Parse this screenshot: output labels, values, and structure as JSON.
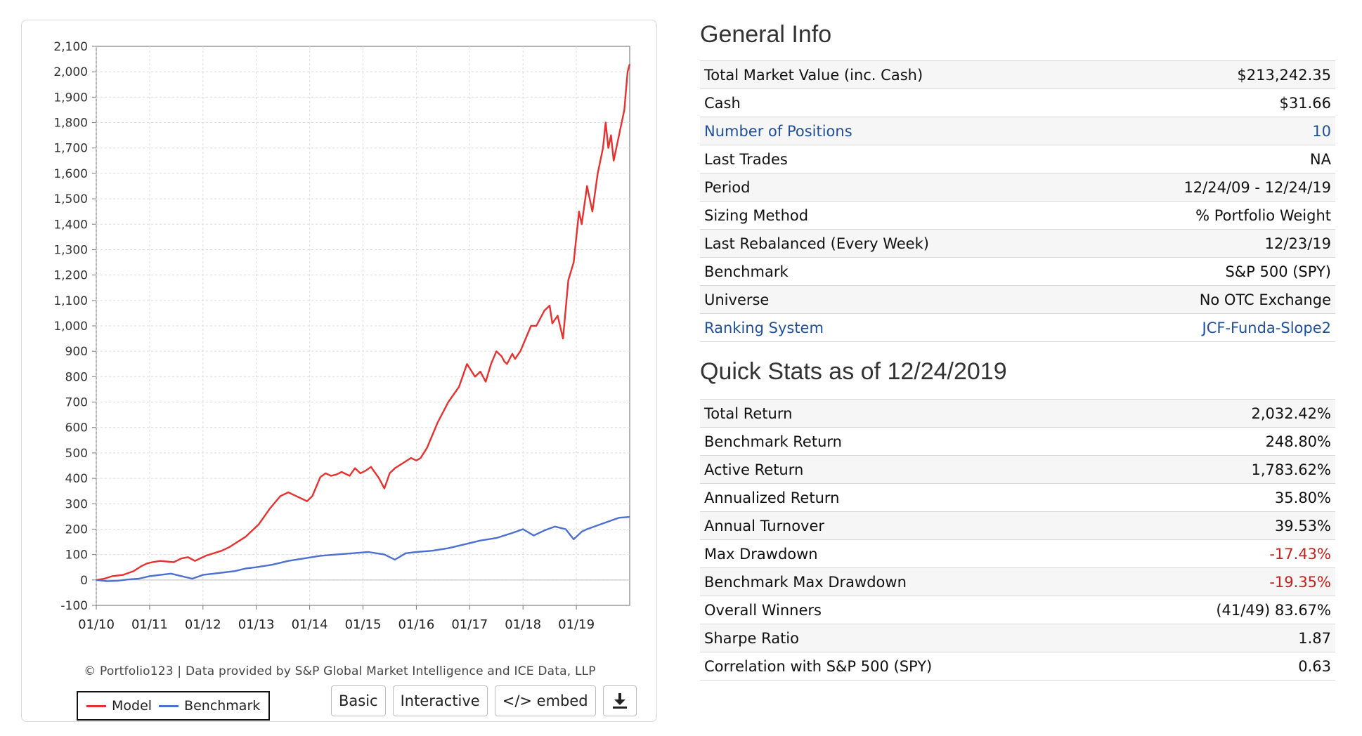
{
  "chart_data": {
    "type": "line",
    "title": "",
    "xlabel": "",
    "ylabel": "",
    "ylim": [
      -100,
      2100
    ],
    "y_ticks": [
      "2,100",
      "2,000",
      "1,900",
      "1,800",
      "1,700",
      "1,600",
      "1,500",
      "1,400",
      "1,300",
      "1,200",
      "1,100",
      "1,000",
      "900",
      "800",
      "700",
      "600",
      "500",
      "400",
      "300",
      "200",
      "100",
      "0",
      "-100"
    ],
    "x_ticks": [
      "01/10",
      "01/11",
      "01/12",
      "01/13",
      "01/14",
      "01/15",
      "01/16",
      "01/17",
      "01/18",
      "01/19"
    ],
    "grid": true,
    "legend_position": "bottom-left",
    "series": [
      {
        "name": "Model",
        "color": "#e8312e",
        "x": [
          0.0,
          0.15,
          0.3,
          0.5,
          0.7,
          0.85,
          0.95,
          1.05,
          1.2,
          1.45,
          1.6,
          1.72,
          1.85,
          1.95,
          2.05,
          2.2,
          2.35,
          2.5,
          2.65,
          2.8,
          2.95,
          3.05,
          3.25,
          3.45,
          3.6,
          3.75,
          3.85,
          3.95,
          4.05,
          4.2,
          4.3,
          4.4,
          4.5,
          4.6,
          4.75,
          4.85,
          4.95,
          5.05,
          5.15,
          5.3,
          5.4,
          5.5,
          5.6,
          5.75,
          5.9,
          6.0,
          6.08,
          6.2,
          6.4,
          6.6,
          6.8,
          6.95,
          7.1,
          7.2,
          7.3,
          7.4,
          7.5,
          7.6,
          7.65,
          7.7,
          7.8,
          7.85,
          7.95,
          8.05,
          8.15,
          8.25,
          8.4,
          8.5,
          8.55,
          8.65,
          8.75,
          8.85,
          8.95,
          9.0,
          9.05,
          9.1,
          9.2,
          9.3,
          9.4,
          9.5,
          9.55,
          9.6,
          9.65,
          9.7,
          9.75,
          9.8,
          9.85,
          9.9,
          9.92,
          9.96,
          10.0
        ],
        "values": [
          0,
          5,
          15,
          20,
          35,
          55,
          65,
          70,
          75,
          70,
          85,
          90,
          75,
          85,
          95,
          105,
          115,
          130,
          150,
          170,
          200,
          220,
          280,
          330,
          345,
          330,
          320,
          310,
          330,
          405,
          420,
          410,
          415,
          425,
          410,
          440,
          420,
          430,
          445,
          400,
          360,
          420,
          440,
          460,
          480,
          470,
          480,
          520,
          620,
          700,
          760,
          850,
          800,
          820,
          780,
          850,
          900,
          880,
          860,
          850,
          890,
          870,
          900,
          950,
          1000,
          1000,
          1060,
          1080,
          1010,
          1040,
          950,
          1180,
          1250,
          1350,
          1450,
          1400,
          1550,
          1450,
          1600,
          1700,
          1800,
          1700,
          1750,
          1650,
          1700,
          1750,
          1800,
          1850,
          1900,
          2000,
          2030
        ]
      },
      {
        "name": "Benchmark",
        "color": "#4b70cf",
        "x": [
          0.0,
          0.2,
          0.4,
          0.6,
          0.8,
          1.0,
          1.2,
          1.4,
          1.6,
          1.8,
          2.0,
          2.2,
          2.4,
          2.6,
          2.8,
          3.0,
          3.3,
          3.6,
          3.9,
          4.2,
          4.5,
          4.8,
          5.1,
          5.4,
          5.6,
          5.8,
          6.0,
          6.3,
          6.6,
          6.9,
          7.2,
          7.5,
          7.8,
          8.0,
          8.2,
          8.4,
          8.6,
          8.8,
          8.95,
          9.0,
          9.05,
          9.1,
          9.2,
          9.4,
          9.6,
          9.8,
          10.0
        ],
        "values": [
          0,
          -5,
          -3,
          2,
          5,
          15,
          20,
          25,
          15,
          5,
          20,
          25,
          30,
          35,
          45,
          50,
          60,
          75,
          85,
          95,
          100,
          105,
          110,
          100,
          80,
          105,
          110,
          115,
          125,
          140,
          155,
          165,
          185,
          200,
          175,
          195,
          210,
          200,
          160,
          170,
          180,
          190,
          200,
          215,
          230,
          245,
          248
        ]
      }
    ]
  },
  "chart_footer": {
    "credit": "© Portfolio123 | Data provided by S&P Global Market Intelligence and ICE Data, LLP",
    "legend": {
      "model": "Model",
      "benchmark": "Benchmark"
    },
    "buttons": {
      "basic": "Basic",
      "interactive": "Interactive",
      "embed": "</> embed",
      "download_icon": "download-icon"
    }
  },
  "general_info": {
    "title": "General Info",
    "rows": [
      {
        "label": "Total Market Value (inc. Cash)",
        "value": "$213,242.35"
      },
      {
        "label": "Cash",
        "value": "$31.66"
      },
      {
        "label": "Number of Positions",
        "value": "10"
      },
      {
        "label": "Last Trades",
        "value": "NA"
      },
      {
        "label": "Period",
        "value": "12/24/09 - 12/24/19"
      },
      {
        "label": "Sizing Method",
        "value": "% Portfolio Weight"
      },
      {
        "label": "Last Rebalanced (Every Week)",
        "value": "12/23/19"
      },
      {
        "label": "Benchmark",
        "value": "S&P 500 (SPY)"
      },
      {
        "label": "Universe",
        "value": "No OTC Exchange"
      },
      {
        "label": "Ranking System",
        "value": "JCF-Funda-Slope2"
      }
    ]
  },
  "quick_stats": {
    "title": "Quick Stats as of 12/24/2019",
    "rows": [
      {
        "label": "Total Return",
        "value": "2,032.42%"
      },
      {
        "label": "Benchmark Return",
        "value": "248.80%"
      },
      {
        "label": "Active Return",
        "value": "1,783.62%"
      },
      {
        "label": "Annualized Return",
        "value": "35.80%"
      },
      {
        "label": "Annual Turnover",
        "value": "39.53%"
      },
      {
        "label": "Max Drawdown",
        "value": "-17.43%"
      },
      {
        "label": "Benchmark Max Drawdown",
        "value": "-19.35%"
      },
      {
        "label": "Overall Winners",
        "value": "(41/49) 83.67%"
      },
      {
        "label": "Sharpe Ratio",
        "value": "1.87"
      },
      {
        "label": "Correlation with S&P 500 (SPY)",
        "value": "0.63"
      }
    ]
  },
  "colors": {
    "link": "#1f4e9a",
    "negative": "#c8201d",
    "model": "#e8312e",
    "benchmark": "#4b70cf"
  }
}
